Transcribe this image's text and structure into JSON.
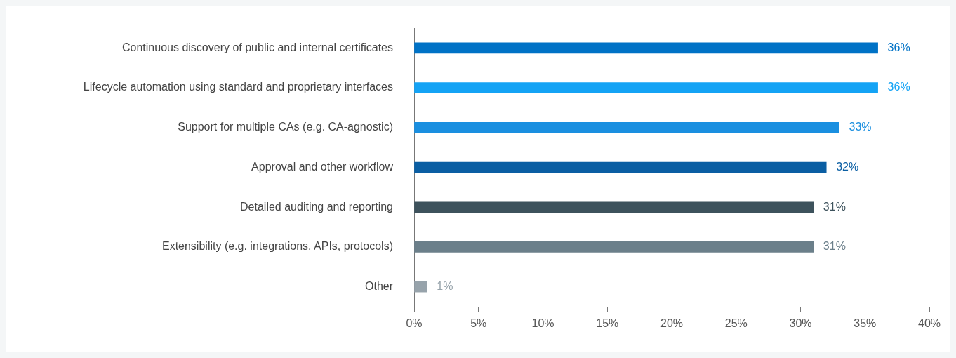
{
  "chart_data": {
    "type": "bar",
    "orientation": "horizontal",
    "categories": [
      "Continuous discovery of public and internal certificates",
      "Lifecycle automation using standard and proprietary interfaces",
      "Support for multiple CAs (e.g. CA-agnostic)",
      "Approval and other workflow",
      "Detailed auditing and reporting",
      "Extensibility (e.g. integrations, APIs, protocols)",
      "Other"
    ],
    "values": [
      36,
      36,
      33,
      32,
      31,
      31,
      1
    ],
    "colors": [
      "#0072c6",
      "#14a3f5",
      "#1a8fe0",
      "#0a5ea3",
      "#3d525c",
      "#6b7f8a",
      "#97a3ab"
    ],
    "value_labels": [
      "36%",
      "36%",
      "33%",
      "32%",
      "31%",
      "31%",
      "1%"
    ],
    "xlim": [
      0,
      40
    ],
    "xticks": [
      {
        "value": 0,
        "label": "0%"
      },
      {
        "value": 5,
        "label": "5%"
      },
      {
        "value": 10,
        "label": "10%"
      },
      {
        "value": 15,
        "label": "15%"
      },
      {
        "value": 20,
        "label": "20%"
      },
      {
        "value": 25,
        "label": "25%"
      },
      {
        "value": 30,
        "label": "30%"
      },
      {
        "value": 35,
        "label": "35%"
      },
      {
        "value": 40,
        "label": "40%"
      }
    ],
    "grid": false,
    "legend": false
  }
}
